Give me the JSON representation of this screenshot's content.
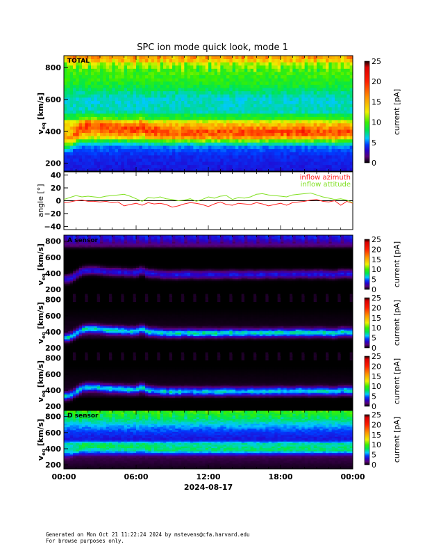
{
  "chart_data": {
    "type": "heatmap",
    "title": "SPC ion mode quick look, mode 1",
    "x_tick_labels": [
      "00:00",
      "06:00",
      "12:00",
      "18:00",
      "00:00"
    ],
    "x_ticks_hours": [
      0,
      6,
      12,
      18,
      24
    ],
    "xlabel": "2024-08-17",
    "xlim_hours": [
      0,
      24
    ],
    "colorbar": {
      "label": "current [pA]",
      "range": [
        0,
        25
      ],
      "ticks": [
        "0",
        "5",
        "10",
        "15",
        "20",
        "25"
      ]
    },
    "spectrogram_ylabel_main": "v",
    "spectrogram_ylabel_sub": "eq",
    "spectrogram_ylabel_units": "[km/s]",
    "spectrogram_ylim": [
      150,
      875
    ],
    "spectrogram_yticks": [
      "200",
      "400",
      "600",
      "800"
    ],
    "peak_velocity_hours": [
      0,
      0.5,
      1,
      1.5,
      2,
      2.5,
      3,
      3.5,
      4,
      4.5,
      5,
      5.5,
      6,
      6.5,
      7,
      7.5,
      8,
      8.5,
      9,
      9.5,
      10,
      10.5,
      11,
      11.5,
      12,
      12.5,
      13,
      13.5,
      14,
      14.5,
      15,
      15.5,
      16,
      16.5,
      17,
      17.5,
      18,
      18.5,
      19,
      19.5,
      20,
      20.5,
      21,
      21.5,
      22,
      22.5,
      23,
      23.5,
      24
    ],
    "peak_velocity_kms": [
      330,
      335,
      380,
      430,
      440,
      440,
      435,
      425,
      420,
      420,
      415,
      410,
      410,
      440,
      400,
      400,
      390,
      385,
      385,
      385,
      390,
      390,
      385,
      385,
      390,
      385,
      385,
      390,
      390,
      385,
      390,
      390,
      385,
      390,
      390,
      390,
      395,
      390,
      390,
      395,
      395,
      390,
      395,
      395,
      390,
      385,
      400,
      400,
      395
    ],
    "panels": [
      {
        "label": "TOTAL",
        "profile": [
          [
            150,
            3.5
          ],
          [
            250,
            4
          ],
          [
            300,
            5
          ],
          [
            330,
            7
          ],
          [
            360,
            12
          ],
          [
            400,
            14
          ],
          [
            460,
            13
          ],
          [
            470,
            9
          ],
          [
            500,
            9
          ],
          [
            510,
            7
          ],
          [
            600,
            6.5
          ],
          [
            650,
            7.5
          ],
          [
            700,
            9
          ],
          [
            780,
            10
          ],
          [
            830,
            12
          ],
          [
            850,
            15
          ],
          [
            875,
            16
          ]
        ],
        "beam_amp": 5
      },
      {
        "label": "A sensor",
        "profile": [
          [
            150,
            0
          ],
          [
            700,
            0
          ],
          [
            750,
            1.5
          ],
          [
            800,
            2.5
          ],
          [
            840,
            3.5
          ],
          [
            875,
            3.5
          ]
        ],
        "beam_amp": 3.5
      },
      {
        "label": "",
        "profile": [
          [
            150,
            0
          ],
          [
            300,
            0
          ],
          [
            340,
            0.5
          ],
          [
            700,
            0
          ],
          [
            875,
            0
          ]
        ],
        "beam_amp": 6.5
      },
      {
        "label": "",
        "profile": [
          [
            150,
            0
          ],
          [
            300,
            0
          ],
          [
            340,
            0.5
          ],
          [
            700,
            0
          ],
          [
            875,
            0
          ]
        ],
        "beam_amp": 6
      },
      {
        "label": "D sensor",
        "profile": [
          [
            150,
            0.3
          ],
          [
            300,
            1
          ],
          [
            340,
            3.5
          ],
          [
            380,
            6
          ],
          [
            470,
            7
          ],
          [
            490,
            5
          ],
          [
            510,
            3.5
          ],
          [
            560,
            3.8
          ],
          [
            620,
            4.5
          ],
          [
            700,
            6
          ],
          [
            780,
            8
          ],
          [
            840,
            9
          ],
          [
            875,
            10
          ]
        ],
        "beam_amp": 1.5
      }
    ],
    "angle_panel": {
      "ylabel": "angle [°]",
      "ylim": [
        -45,
        45
      ],
      "yticks": [
        "−40",
        "−20",
        "0",
        "20",
        "40"
      ],
      "ytick_values": [
        -40,
        -20,
        0,
        20,
        40
      ],
      "series": [
        {
          "name": "inflow azimuth",
          "color": "#ff2020",
          "values": [
            -3,
            -2,
            0,
            1,
            -1,
            -1,
            -2,
            -1,
            -3,
            -2,
            -8,
            -6,
            -4,
            -7,
            -3,
            -5,
            -4,
            -6,
            -10,
            -8,
            -5,
            -3,
            -4,
            -6,
            -9,
            -5,
            -2,
            -6,
            -7,
            -4,
            -5,
            -6,
            -3,
            -5,
            -8,
            -6,
            -4,
            -7,
            -3,
            -2,
            -1,
            1,
            2,
            -1,
            -2,
            0,
            -7,
            -1,
            -4
          ]
        },
        {
          "name": "inflow attitude",
          "color": "#80e020",
          "values": [
            2,
            5,
            8,
            6,
            7,
            6,
            5,
            7,
            8,
            9,
            10,
            7,
            3,
            -1,
            5,
            4,
            6,
            3,
            2,
            0,
            1,
            3,
            -1,
            2,
            6,
            4,
            7,
            8,
            2,
            5,
            4,
            6,
            10,
            11,
            9,
            8,
            7,
            6,
            9,
            10,
            11,
            12,
            9,
            6,
            4,
            2,
            3,
            1,
            -3
          ]
        }
      ]
    }
  },
  "footer": {
    "line1": "Generated on Mon Oct 21 11:22:24 2024 by mstevens@cfa.harvard.edu",
    "line2": "For browse purposes only."
  }
}
